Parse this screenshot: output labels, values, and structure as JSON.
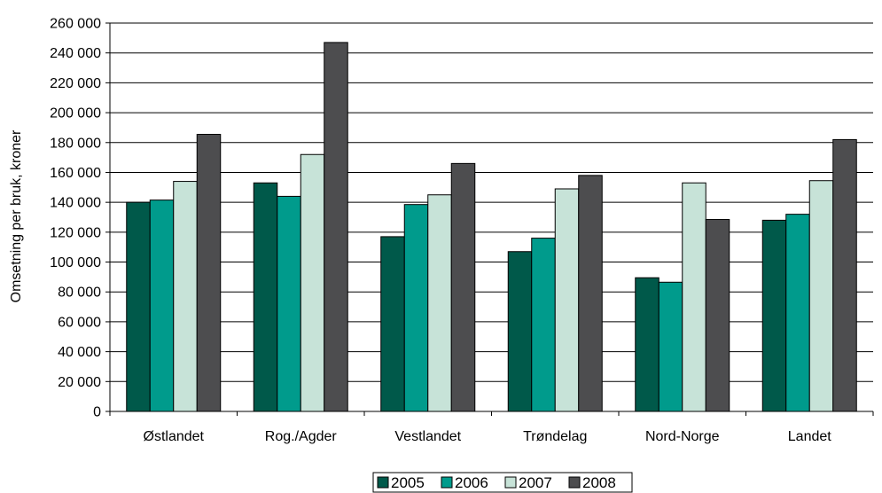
{
  "chart_data": {
    "type": "bar",
    "ylabel": "Omsetning per bruk, kroner",
    "xlabel": "",
    "ylim": [
      0,
      260000
    ],
    "ytick_step": 20000,
    "yticks": [
      "0",
      "20 000",
      "40 000",
      "60 000",
      "80 000",
      "100 000",
      "120 000",
      "140 000",
      "160 000",
      "180 000",
      "200 000",
      "220 000",
      "240 000",
      "260 000"
    ],
    "categories": [
      "Østlandet",
      "Rog./Agder",
      "Vestlandet",
      "Trøndelag",
      "Nord-Norge",
      "Landet"
    ],
    "series": [
      {
        "name": "2005",
        "color": "#00594a",
        "values": [
          140000,
          153000,
          117000,
          107000,
          89500,
          128000
        ]
      },
      {
        "name": "2006",
        "color": "#009b8c",
        "values": [
          141500,
          144000,
          138500,
          116000,
          86500,
          132000
        ]
      },
      {
        "name": "2007",
        "color": "#c7e3d8",
        "values": [
          154000,
          172000,
          145000,
          149000,
          153000,
          154500
        ]
      },
      {
        "name": "2008",
        "color": "#4d4d4f",
        "values": [
          185500,
          247000,
          166000,
          158000,
          128500,
          182000
        ]
      }
    ],
    "grid": true,
    "legend_position": "bottom"
  }
}
